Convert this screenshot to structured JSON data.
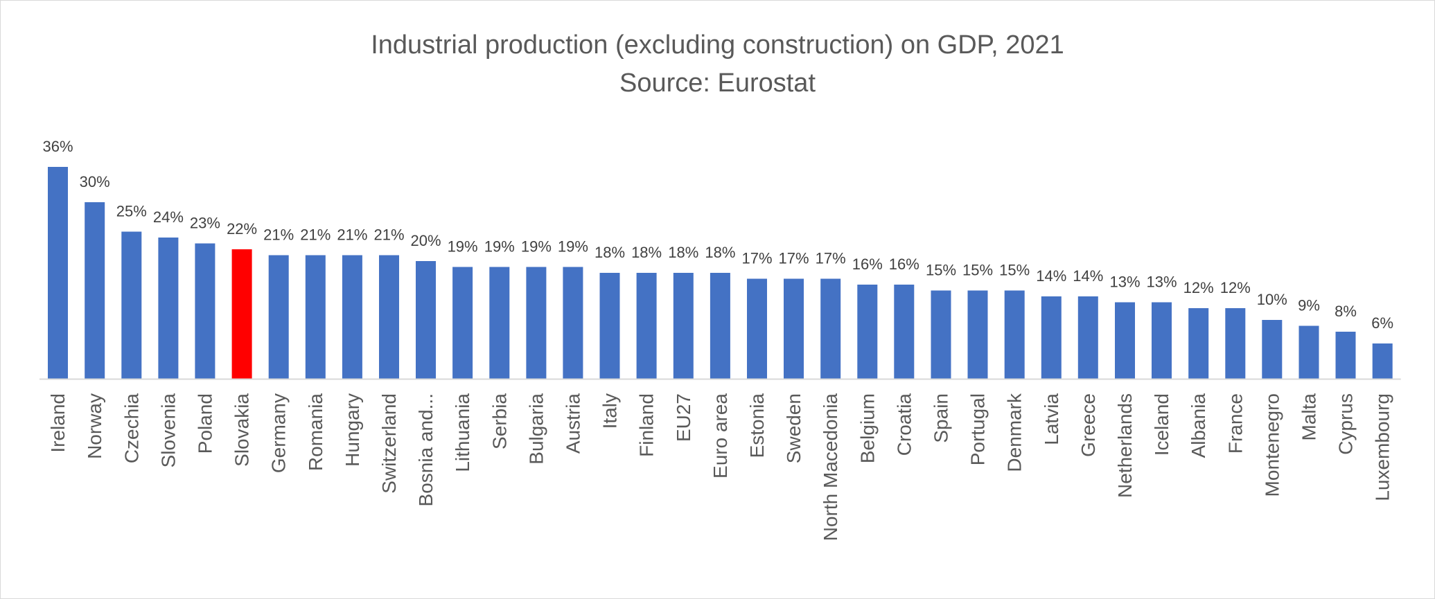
{
  "chart_data": {
    "type": "bar",
    "title": "Industrial production (excluding construction) on GDP, 2021",
    "subtitle": "Source: Eurostat",
    "categories": [
      "Ireland",
      "Norway",
      "Czechia",
      "Slovenia",
      "Poland",
      "Slovakia",
      "Germany",
      "Romania",
      "Hungary",
      "Switzerland",
      "Bosnia and...",
      "Lithuania",
      "Serbia",
      "Bulgaria",
      "Austria",
      "Italy",
      "Finland",
      "EU27",
      "Euro area",
      "Estonia",
      "Sweden",
      "North Macedonia",
      "Belgium",
      "Croatia",
      "Spain",
      "Portugal",
      "Denmark",
      "Latvia",
      "Greece",
      "Netherlands",
      "Iceland",
      "Albania",
      "France",
      "Montenegro",
      "Malta",
      "Cyprus",
      "Luxembourg"
    ],
    "values": [
      36,
      30,
      25,
      24,
      23,
      22,
      21,
      21,
      21,
      21,
      20,
      19,
      19,
      19,
      19,
      18,
      18,
      18,
      18,
      17,
      17,
      17,
      16,
      16,
      15,
      15,
      15,
      14,
      14,
      13,
      13,
      12,
      12,
      10,
      9,
      8,
      6
    ],
    "data_labels": [
      "36%",
      "30%",
      "25%",
      "24%",
      "23%",
      "22%",
      "21%",
      "21%",
      "21%",
      "21%",
      "20%",
      "19%",
      "19%",
      "19%",
      "19%",
      "18%",
      "18%",
      "18%",
      "18%",
      "17%",
      "17%",
      "17%",
      "16%",
      "16%",
      "15%",
      "15%",
      "15%",
      "14%",
      "14%",
      "13%",
      "13%",
      "12%",
      "12%",
      "10%",
      "9%",
      "8%",
      "6%"
    ],
    "highlight": "Slovakia",
    "colors": {
      "bar": "#4472c4",
      "highlight": "#ff0000",
      "axis": "#d9d9d9"
    },
    "xlabel": "",
    "ylabel": "",
    "ylim": [
      0,
      36
    ],
    "grid": false,
    "legend": "none"
  }
}
